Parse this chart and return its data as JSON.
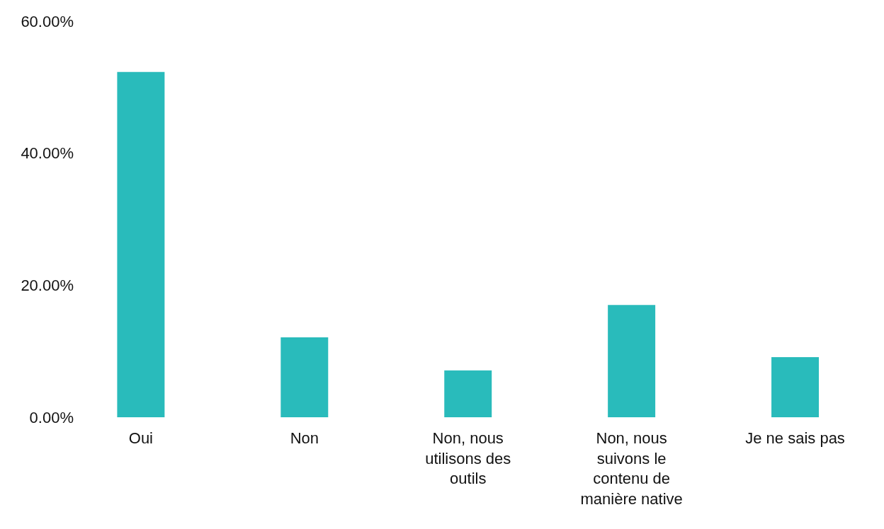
{
  "chart_data": {
    "type": "bar",
    "categories": [
      "Oui",
      "Non",
      "Non, nous utilisons des outils",
      "Non, nous suivons le contenu de manière native",
      "Je ne sais pas"
    ],
    "values": [
      52.3,
      12.1,
      7.1,
      17.0,
      9.1
    ],
    "color": "#29bbbb",
    "ylim": [
      0,
      60
    ],
    "yticks": [
      {
        "value": 0,
        "label": "0.00%"
      },
      {
        "value": 20,
        "label": "20.00%"
      },
      {
        "value": 40,
        "label": "40.00%"
      },
      {
        "value": 60,
        "label": "60.00%"
      }
    ],
    "grid": false
  }
}
